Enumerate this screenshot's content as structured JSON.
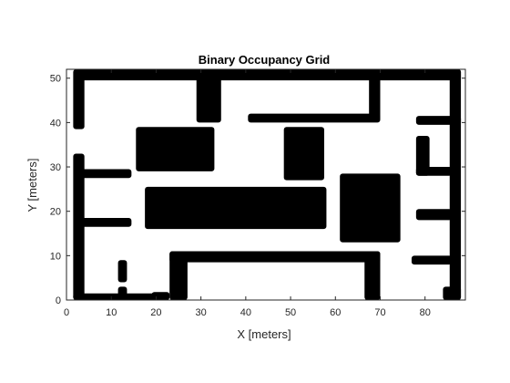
{
  "chart_data": {
    "type": "heatmap",
    "title": "Binary Occupancy Grid",
    "xlabel": "X [meters]",
    "ylabel": "Y [meters]",
    "xlim": [
      0,
      89
    ],
    "ylim": [
      0,
      52
    ],
    "xticks": [
      0,
      10,
      20,
      30,
      40,
      50,
      60,
      70,
      80
    ],
    "yticks": [
      0,
      10,
      20,
      30,
      40,
      50
    ],
    "occupied_color": "#000000",
    "free_color": "#ffffff",
    "occupied_regions": [
      {
        "name": "top-wall",
        "x": [
          2,
          88
        ],
        "y": [
          49.5,
          52
        ]
      },
      {
        "name": "left-wall-upper",
        "x": [
          1.5,
          4
        ],
        "y": [
          38.5,
          52
        ]
      },
      {
        "name": "left-wall-lower",
        "x": [
          1.5,
          4
        ],
        "y": [
          0,
          33
        ]
      },
      {
        "name": "right-wall",
        "x": [
          85.5,
          88
        ],
        "y": [
          0,
          52
        ]
      },
      {
        "name": "bottom-wall",
        "x": [
          1.5,
          22.5
        ],
        "y": [
          0,
          1.5
        ]
      },
      {
        "name": "block-30-45",
        "x": [
          29,
          34.5
        ],
        "y": [
          40,
          51
        ]
      },
      {
        "name": "pillar-68-40",
        "x": [
          67.5,
          70
        ],
        "y": [
          40.5,
          51
        ]
      },
      {
        "name": "bar-y41",
        "x": [
          40.5,
          70
        ],
        "y": [
          40,
          42
        ]
      },
      {
        "name": "bar-y40-right",
        "x": [
          78,
          88
        ],
        "y": [
          39.5,
          41.5
        ]
      },
      {
        "name": "box-24-34",
        "x": [
          15.5,
          33
        ],
        "y": [
          29,
          39
        ]
      },
      {
        "name": "box-50-33",
        "x": [
          48.5,
          57.5
        ],
        "y": [
          27,
          39
        ]
      },
      {
        "name": "box-big",
        "x": [
          17.5,
          58
        ],
        "y": [
          16,
          25.5
        ]
      },
      {
        "name": "box-68-21",
        "x": [
          61,
          74.5
        ],
        "y": [
          13,
          28.5
        ]
      },
      {
        "name": "bar-y28-left",
        "x": [
          3,
          14.5
        ],
        "y": [
          27.5,
          29.5
        ]
      },
      {
        "name": "bar-y18-left",
        "x": [
          3,
          14.5
        ],
        "y": [
          16.5,
          18.5
        ]
      },
      {
        "name": "room-top",
        "x": [
          23,
          70
        ],
        "y": [
          8.5,
          11
        ]
      },
      {
        "name": "room-left",
        "x": [
          23,
          27
        ],
        "y": [
          0,
          11
        ]
      },
      {
        "name": "room-right",
        "x": [
          66.5,
          70
        ],
        "y": [
          0,
          11
        ]
      },
      {
        "name": "stub-12-7",
        "x": [
          11.5,
          13.5
        ],
        "y": [
          4,
          9
        ]
      },
      {
        "name": "stub-12-2",
        "x": [
          11.5,
          13.5
        ],
        "y": [
          0,
          3
        ]
      },
      {
        "name": "bump-bottom-20",
        "x": [
          19,
          23
        ],
        "y": [
          0,
          1.8
        ]
      },
      {
        "name": "c-shape-bar-top",
        "x": [
          78,
          81
        ],
        "y": [
          28,
          37
        ]
      },
      {
        "name": "c-shape-bar-bottom",
        "x": [
          78,
          86
        ],
        "y": [
          28,
          30
        ]
      },
      {
        "name": "bar-y19-right",
        "x": [
          78,
          86
        ],
        "y": [
          18,
          20.5
        ]
      },
      {
        "name": "bar-y9-right",
        "x": [
          77,
          86
        ],
        "y": [
          8,
          10
        ]
      },
      {
        "name": "right-corner-bottom",
        "x": [
          84,
          88
        ],
        "y": [
          0,
          3
        ]
      }
    ]
  }
}
